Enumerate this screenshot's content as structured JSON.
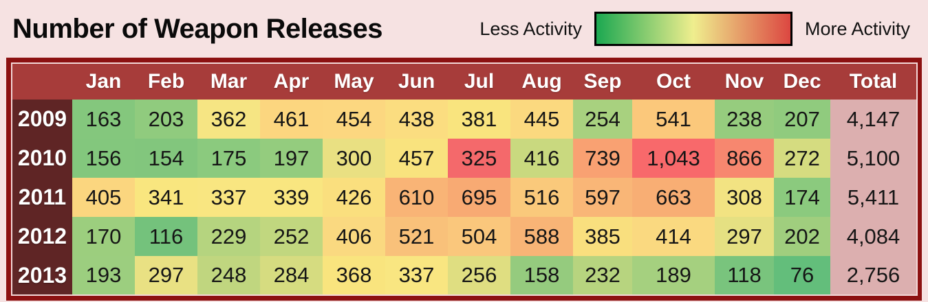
{
  "palette": {
    "page_bg": "#F6E2E2",
    "table_outer_border": "#8C1111",
    "table_inner_line": "#F3D8D8",
    "header_bg": "#A73C3A",
    "year_column_bg": "#5F2525",
    "header_text": "#FFFFFF",
    "cell_text": "#151515",
    "total_column_bg": "#DCAFAF"
  },
  "chart_data": {
    "type": "heatmap",
    "title": "Number of Weapon Releases",
    "columns": [
      "Jan",
      "Feb",
      "Mar",
      "Apr",
      "May",
      "Jun",
      "Jul",
      "Aug",
      "Sep",
      "Oct",
      "Nov",
      "Dec",
      "Total"
    ],
    "years": [
      "2009",
      "2010",
      "2011",
      "2012",
      "2013"
    ],
    "values": [
      [
        163,
        203,
        362,
        461,
        454,
        438,
        381,
        445,
        254,
        541,
        238,
        207
      ],
      [
        156,
        154,
        175,
        197,
        300,
        457,
        325,
        416,
        739,
        1043,
        866,
        272
      ],
      [
        405,
        341,
        337,
        339,
        426,
        610,
        695,
        516,
        597,
        663,
        308,
        174
      ],
      [
        170,
        116,
        229,
        252,
        406,
        521,
        504,
        588,
        385,
        414,
        297,
        202
      ],
      [
        193,
        297,
        248,
        284,
        368,
        337,
        256,
        158,
        232,
        189,
        118,
        76
      ]
    ],
    "totals": [
      4147,
      5100,
      5411,
      4084,
      2756
    ],
    "cell_colors": [
      [
        "#84C77D",
        "#90CB7E",
        "#F6E583",
        "#FCD67F",
        "#FCD780",
        "#FBDD80",
        "#F9E47E",
        "#FBD97F",
        "#A8D17F",
        "#FBC87B",
        "#96CC7E",
        "#90CB7E"
      ],
      [
        "#83C77D",
        "#82C67D",
        "#8BCA7E",
        "#94CC7E",
        "#E9E082",
        "#F9E37E",
        "#F4696B",
        "#C9D97F",
        "#F9A172",
        "#F8696B",
        "#F7876F",
        "#D5DC80"
      ],
      [
        "#FBD67F",
        "#F9E67F",
        "#F9E681",
        "#F9E680",
        "#FADF7E",
        "#F9B476",
        "#F8AA73",
        "#FAC97B",
        "#F9B677",
        "#F8AE74",
        "#F2E382",
        "#8BCA7E"
      ],
      [
        "#9CCE7E",
        "#74C27C",
        "#B5D47F",
        "#C1D77F",
        "#FAD980",
        "#F9C17A",
        "#FAC77C",
        "#F8B476",
        "#F9DF7E",
        "#FAD980",
        "#E5E082",
        "#A0CE7E"
      ],
      [
        "#9CCE7F",
        "#E9E183",
        "#C0D67F",
        "#D6DC80",
        "#F9E47E",
        "#F9E681",
        "#DFDE81",
        "#95CB7E",
        "#B7D47F",
        "#A5D07F",
        "#79C47D",
        "#63BE7B"
      ]
    ],
    "total_color": "#DCAFAF",
    "legend": {
      "less": "Less Activity",
      "more": "More Activity",
      "min_color": "#1CA851",
      "mid_color": "#EFEE8E",
      "max_color": "#DC4741",
      "position": "top-right"
    },
    "grid": false
  }
}
